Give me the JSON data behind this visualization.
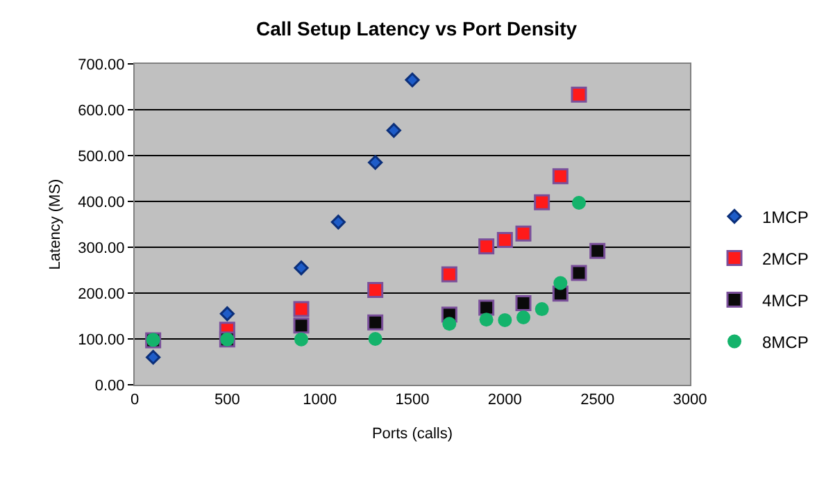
{
  "chart_data": {
    "type": "scatter",
    "title": "Call Setup Latency vs Port Density",
    "xlabel": "Ports (calls)",
    "ylabel": "Latency (MS)",
    "xlim": [
      0,
      3000
    ],
    "xticks": [
      0,
      500,
      1000,
      1500,
      2000,
      2500,
      3000
    ],
    "ylim": [
      0,
      700
    ],
    "yticks": [
      {
        "value": 0,
        "label": "0.00"
      },
      {
        "value": 100,
        "label": "100.00"
      },
      {
        "value": 200,
        "label": "200.00"
      },
      {
        "value": 300,
        "label": "300.00"
      },
      {
        "value": 400,
        "label": "400.00"
      },
      {
        "value": 500,
        "label": "500.00"
      },
      {
        "value": 600,
        "label": "600.00"
      },
      {
        "value": 700,
        "label": "700.00"
      }
    ],
    "grid": "y",
    "legend": "right",
    "series": [
      {
        "name": "1MCP",
        "color": "#1e5cc8",
        "marker": "diamond",
        "x": [
          100,
          500,
          900,
          1100,
          1300,
          1400,
          1500
        ],
        "values": [
          60,
          155,
          255,
          355,
          485,
          555,
          665
        ]
      },
      {
        "name": "2MCP",
        "color": "#ff1a1a",
        "marker": "square",
        "x": [
          500,
          900,
          1300,
          1700,
          1900,
          2000,
          2100,
          2200,
          2300,
          2400
        ],
        "values": [
          120,
          165,
          207,
          241,
          302,
          316,
          330,
          398,
          455,
          633
        ]
      },
      {
        "name": "4MCP",
        "color": "#0a0a0a",
        "marker": "square",
        "x": [
          100,
          500,
          900,
          1300,
          1700,
          1900,
          2100,
          2300,
          2400,
          2500
        ],
        "values": [
          97,
          99,
          129,
          136,
          153,
          168,
          178,
          199,
          244,
          292
        ]
      },
      {
        "name": "8MCP",
        "color": "#14b36b",
        "marker": "circle",
        "x": [
          100,
          500,
          900,
          1300,
          1700,
          1900,
          2000,
          2100,
          2200,
          2300,
          2400
        ],
        "values": [
          98,
          99,
          99,
          100,
          133,
          142,
          141,
          147,
          165,
          222,
          397
        ]
      }
    ]
  }
}
